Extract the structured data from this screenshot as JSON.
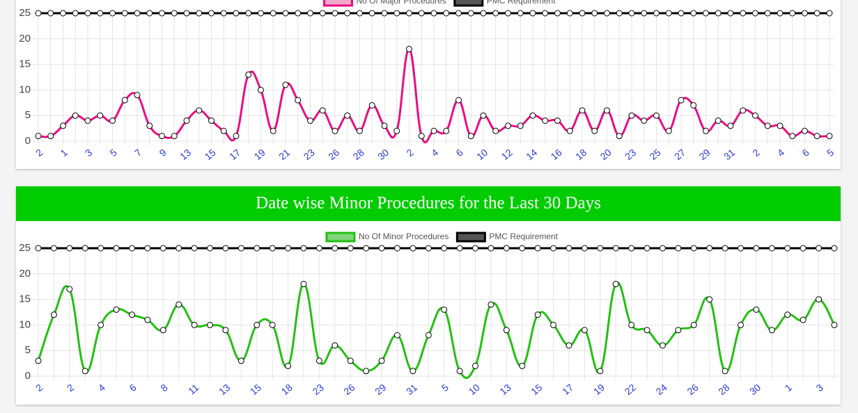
{
  "chart_data": [
    {
      "type": "line",
      "categories": [
        "2",
        null,
        "1",
        null,
        "3",
        null,
        "5",
        null,
        "7",
        null,
        "9",
        null,
        "13",
        null,
        "15",
        null,
        "17",
        null,
        "19",
        null,
        "21",
        null,
        "23",
        null,
        "26",
        null,
        "28",
        null,
        "30",
        null,
        "2",
        null,
        "4",
        null,
        "6",
        null,
        "10",
        null,
        "12",
        null,
        "14",
        null,
        "16",
        null,
        "18",
        null,
        "20",
        null,
        "23",
        null,
        "25",
        null,
        "27",
        null,
        "29",
        null,
        "31",
        null,
        "2",
        null,
        "4",
        null,
        "6",
        null,
        "5"
      ],
      "series": [
        {
          "name": "No Of Major Procedures",
          "color": "#ec0b80",
          "fill": "#f2a7ca",
          "values": [
            1,
            1,
            3,
            5,
            4,
            5,
            4,
            8,
            9,
            3,
            1,
            1,
            4,
            6,
            4,
            2,
            1,
            13,
            10,
            2,
            11,
            8,
            4,
            6,
            2,
            5,
            2,
            7,
            3,
            2,
            18,
            1,
            2,
            2,
            8,
            1,
            5,
            2,
            3,
            3,
            5,
            4,
            4,
            2,
            6,
            2,
            6,
            1,
            5,
            4,
            5,
            2,
            8,
            7,
            2,
            4,
            3,
            6,
            5,
            3,
            3,
            1,
            2,
            1,
            1
          ]
        },
        {
          "name": "PMC Requirement",
          "color": "#000000",
          "fill": "#555555",
          "values": [
            25,
            25,
            25,
            25,
            25,
            25,
            25,
            25,
            25,
            25,
            25,
            25,
            25,
            25,
            25,
            25,
            25,
            25,
            25,
            25,
            25,
            25,
            25,
            25,
            25,
            25,
            25,
            25,
            25,
            25,
            25,
            25,
            25,
            25,
            25,
            25,
            25,
            25,
            25,
            25,
            25,
            25,
            25,
            25,
            25,
            25,
            25,
            25,
            25,
            25,
            25,
            25,
            25,
            25,
            25,
            25,
            25,
            25,
            25,
            25,
            25,
            25,
            25,
            25,
            25
          ]
        }
      ],
      "ylim": [
        0,
        25
      ],
      "yticks": [
        0,
        5,
        10,
        15,
        20,
        25
      ],
      "grid": true,
      "legend": "top"
    },
    {
      "type": "line",
      "title": "Date wise Minor Procedures for the Last 30 Days",
      "categories": [
        "2",
        null,
        "2",
        null,
        "4",
        null,
        "6",
        null,
        "8",
        null,
        "11",
        null,
        "13",
        null,
        "15",
        null,
        "18",
        null,
        "23",
        null,
        "26",
        null,
        "29",
        null,
        "31",
        null,
        "5",
        null,
        "10",
        null,
        "13",
        null,
        "15",
        null,
        "17",
        null,
        "19",
        null,
        "22",
        null,
        "24",
        null,
        "26",
        null,
        "28",
        null,
        "30",
        null,
        "1",
        null,
        "3",
        null
      ],
      "series": [
        {
          "name": "No Of Minor Procedures",
          "color": "#22c010",
          "fill": "#80d47a",
          "values": [
            3,
            12,
            17,
            1,
            10,
            13,
            12,
            11,
            9,
            14,
            10,
            10,
            9,
            3,
            10,
            10,
            2,
            18,
            3,
            6,
            3,
            1,
            3,
            8,
            1,
            8,
            13,
            1,
            2,
            14,
            9,
            2,
            12,
            10,
            6,
            9,
            1,
            18,
            10,
            9,
            6,
            9,
            10,
            15,
            1,
            10,
            13,
            9,
            12,
            11,
            15,
            10
          ]
        },
        {
          "name": "PMC Requirement",
          "color": "#000000",
          "fill": "#555555",
          "values": [
            25,
            25,
            25,
            25,
            25,
            25,
            25,
            25,
            25,
            25,
            25,
            25,
            25,
            25,
            25,
            25,
            25,
            25,
            25,
            25,
            25,
            25,
            25,
            25,
            25,
            25,
            25,
            25,
            25,
            25,
            25,
            25,
            25,
            25,
            25,
            25,
            25,
            25,
            25,
            25,
            25,
            25,
            25,
            25,
            25,
            25,
            25,
            25,
            25,
            25,
            25,
            25
          ]
        }
      ],
      "ylim": [
        0,
        25
      ],
      "yticks": [
        0,
        5,
        10,
        15,
        20,
        25
      ],
      "grid": true,
      "legend": "top"
    }
  ]
}
